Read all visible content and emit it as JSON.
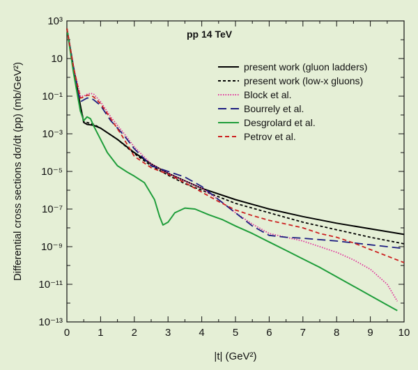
{
  "chart_data": {
    "type": "line",
    "title": "",
    "annotation": "pp 14 TeV",
    "xlabel": "|t| (GeV²)",
    "ylabel": "Differential cross sections dσ/dt (pp) (mb/GeV²)",
    "xlim": [
      0,
      10
    ],
    "ylim_log10": [
      -13,
      3
    ],
    "y_scale": "log",
    "x_ticks": [
      0,
      1,
      2,
      3,
      4,
      5,
      6,
      7,
      8,
      9,
      10
    ],
    "y_ticks": [
      {
        "exp": 3,
        "label": "10³"
      },
      {
        "exp": 1,
        "label": "10"
      },
      {
        "exp": -1,
        "label": "10⁻¹"
      },
      {
        "exp": -3,
        "label": "10⁻³"
      },
      {
        "exp": -5,
        "label": "10⁻⁵"
      },
      {
        "exp": -7,
        "label": "10⁻⁷"
      },
      {
        "exp": -9,
        "label": "10⁻⁹"
      },
      {
        "exp": -11,
        "label": "10⁻¹¹"
      },
      {
        "exp": -13,
        "label": "10⁻¹³"
      }
    ],
    "grid": false,
    "legend_position": "top-right",
    "series": [
      {
        "name": "present work (gluon ladders)",
        "color": "#000000",
        "dash": "solid",
        "x": [
          0,
          0.2,
          0.4,
          0.5,
          0.6,
          0.8,
          1.0,
          1.5,
          2.0,
          2.5,
          3.0,
          3.5,
          4.0,
          5.0,
          6.0,
          7.0,
          8.0,
          9.0,
          10.0
        ],
        "log10_y": [
          2.6,
          0.5,
          -1.5,
          -2.4,
          -2.5,
          -2.55,
          -2.7,
          -3.3,
          -4.0,
          -4.6,
          -5.1,
          -5.5,
          -5.9,
          -6.5,
          -7.0,
          -7.4,
          -7.75,
          -8.05,
          -8.35
        ]
      },
      {
        "name": "present work (low-x gluons)",
        "color": "#000000",
        "dash": "4,3",
        "x": [
          0,
          0.2,
          0.4,
          0.5,
          0.6,
          0.8,
          1.0,
          1.5,
          2.0,
          2.5,
          3.0,
          3.5,
          4.0,
          5.0,
          6.0,
          7.0,
          8.0,
          9.0,
          10.0
        ],
        "log10_y": [
          2.6,
          0.5,
          -1.5,
          -2.35,
          -2.4,
          -2.5,
          -2.7,
          -3.3,
          -4.05,
          -4.7,
          -5.2,
          -5.65,
          -6.0,
          -6.7,
          -7.2,
          -7.7,
          -8.1,
          -8.5,
          -8.85
        ]
      },
      {
        "name": "Block et al.",
        "color": "#e0309a",
        "dash": "1.5,2",
        "x": [
          0,
          0.2,
          0.4,
          0.5,
          0.6,
          0.7,
          0.8,
          1.0,
          1.3,
          1.7,
          2.0,
          2.5,
          3.0,
          3.5,
          4.0,
          4.5,
          5.0,
          5.5,
          6.0,
          6.5,
          7.0,
          7.5,
          8.0,
          8.5,
          9.0,
          9.5,
          9.8
        ],
        "log10_y": [
          2.6,
          0.5,
          -1.0,
          -1.0,
          -0.9,
          -0.85,
          -0.9,
          -1.3,
          -2.1,
          -3.0,
          -3.7,
          -4.6,
          -5.1,
          -5.5,
          -5.9,
          -6.5,
          -7.2,
          -7.8,
          -8.3,
          -8.5,
          -8.7,
          -9.0,
          -9.3,
          -9.7,
          -10.2,
          -11.0,
          -11.9
        ]
      },
      {
        "name": "Bourrely et al.",
        "color": "#1c1c80",
        "dash": "12,6",
        "x": [
          0,
          0.2,
          0.4,
          0.5,
          0.6,
          0.7,
          0.8,
          1.0,
          1.3,
          1.7,
          2.0,
          2.5,
          3.0,
          3.5,
          4.0,
          4.5,
          5.0,
          5.5,
          6.0,
          6.5,
          7.0,
          8.0,
          9.0,
          10.0
        ],
        "log10_y": [
          2.6,
          0.5,
          -1.3,
          -1.2,
          -1.1,
          -1.1,
          -1.2,
          -1.5,
          -2.3,
          -3.1,
          -3.8,
          -4.7,
          -5.0,
          -5.3,
          -5.8,
          -6.5,
          -7.2,
          -7.9,
          -8.4,
          -8.5,
          -8.55,
          -8.7,
          -8.9,
          -9.1
        ]
      },
      {
        "name": "Desgrolard et al.",
        "color": "#1e9d3a",
        "dash": "solid",
        "x": [
          0,
          0.2,
          0.4,
          0.5,
          0.6,
          0.7,
          0.8,
          1.0,
          1.2,
          1.5,
          1.8,
          2.0,
          2.3,
          2.6,
          2.75,
          2.85,
          3.0,
          3.2,
          3.5,
          3.8,
          4.2,
          4.6,
          5.0,
          5.5,
          6.0,
          6.5,
          7.0,
          7.5,
          8.0,
          8.5,
          9.0,
          9.5,
          9.8
        ],
        "log10_y": [
          2.6,
          0.2,
          -1.8,
          -2.3,
          -2.1,
          -2.2,
          -2.6,
          -3.3,
          -4.0,
          -4.7,
          -5.05,
          -5.25,
          -5.6,
          -6.5,
          -7.4,
          -7.85,
          -7.7,
          -7.2,
          -6.95,
          -7.0,
          -7.3,
          -7.55,
          -7.9,
          -8.3,
          -8.75,
          -9.2,
          -9.65,
          -10.1,
          -10.6,
          -11.1,
          -11.6,
          -12.1,
          -12.4
        ]
      },
      {
        "name": "Petrov et al.",
        "color": "#cc1f1f",
        "dash": "6,4",
        "x": [
          0,
          0.2,
          0.4,
          0.5,
          0.6,
          0.7,
          0.8,
          1.0,
          1.3,
          1.6,
          2.0,
          2.5,
          3.0,
          3.5,
          4.0,
          4.5,
          5.0,
          5.5,
          6.0,
          6.5,
          7.0,
          7.5,
          8.0,
          8.5,
          9.0,
          9.5,
          10.0
        ],
        "log10_y": [
          2.6,
          0.5,
          -1.1,
          -1.05,
          -0.95,
          -0.95,
          -1.05,
          -1.4,
          -2.2,
          -3.0,
          -4.2,
          -4.8,
          -5.15,
          -5.6,
          -6.1,
          -6.6,
          -7.05,
          -7.35,
          -7.6,
          -7.8,
          -8.0,
          -8.3,
          -8.5,
          -8.8,
          -9.15,
          -9.5,
          -9.85
        ]
      }
    ]
  }
}
